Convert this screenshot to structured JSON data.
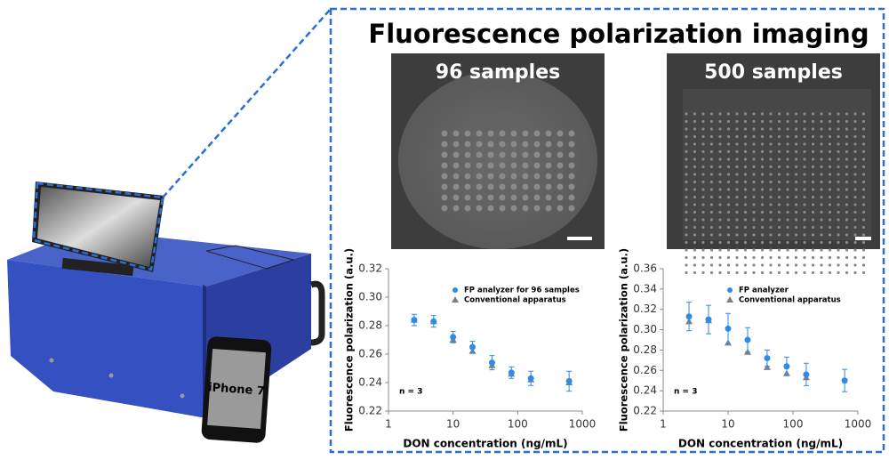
{
  "header": {
    "title": "Fluorescence polarization imaging"
  },
  "images": [
    {
      "label": "96 samples"
    },
    {
      "label": "500 samples"
    }
  ],
  "device": {
    "label": "iPhone 7"
  },
  "chart_data": [
    {
      "type": "scatter",
      "x_label": "DON concentration (ng/mL)",
      "y_label": "Fluorescence polarization (a.u.)",
      "log_x": true,
      "xlim": [
        1,
        1000
      ],
      "xticks": [
        1,
        10,
        100,
        1000
      ],
      "ylim": [
        0.22,
        0.32
      ],
      "yticks": [
        0.22,
        0.24,
        0.26,
        0.28,
        {
          "value": 0.3,
          "label": "0.30"
        },
        0.32
      ],
      "x": [
        2.5,
        5,
        10,
        20,
        40,
        80,
        160,
        625
      ],
      "series": [
        {
          "name": "FP analyzer for 96 samples",
          "color": "#2e8be6",
          "marker": "circle",
          "values": [
            0.284,
            0.283,
            0.272,
            0.265,
            0.254,
            0.247,
            0.243,
            0.241
          ],
          "errors": [
            0.004,
            0.004,
            0.004,
            0.004,
            0.005,
            0.004,
            0.005,
            0.007
          ]
        },
        {
          "name": "Conventional apparatus",
          "color": "#7f7f7f",
          "marker": "triangle",
          "values": [
            0.284,
            0.283,
            0.27,
            0.262,
            0.252,
            0.246,
            0.242,
            0.24
          ]
        }
      ],
      "annotation": "n = 3"
    },
    {
      "type": "scatter",
      "x_label": "DON concentration (ng/mL)",
      "y_label": "Fluorescence polarization (a.u.)",
      "log_x": true,
      "xlim": [
        1,
        1000
      ],
      "xticks": [
        1,
        10,
        100,
        1000
      ],
      "ylim": [
        0.22,
        0.36
      ],
      "yticks": [
        0.22,
        0.24,
        0.26,
        0.28,
        {
          "value": 0.3,
          "label": "0.30"
        },
        0.32,
        0.34,
        0.36
      ],
      "x": [
        2.5,
        5,
        10,
        20,
        40,
        80,
        160,
        625
      ],
      "series": [
        {
          "name": "FP analyzer",
          "color": "#2e8be6",
          "marker": "circle",
          "values": [
            0.313,
            0.31,
            0.301,
            0.29,
            0.272,
            0.264,
            0.256,
            0.25
          ],
          "errors": [
            0.014,
            0.014,
            0.015,
            0.012,
            0.008,
            0.009,
            0.011,
            0.011
          ]
        },
        {
          "name": "Conventional apparatus",
          "color": "#7f7f7f",
          "marker": "triangle",
          "values": [
            0.308,
            0.309,
            0.287,
            0.278,
            0.263,
            0.257,
            0.253,
            null
          ]
        }
      ],
      "annotation": "n = 3"
    }
  ]
}
